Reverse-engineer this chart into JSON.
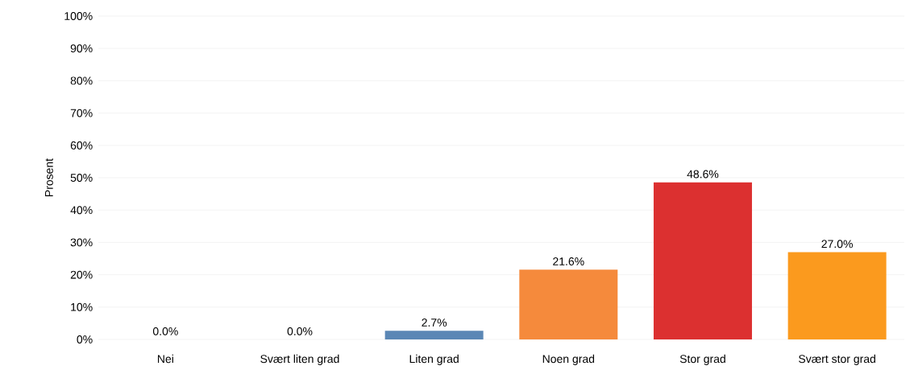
{
  "chart_data": {
    "type": "bar",
    "ylabel": "Prosent",
    "categories": [
      "Nei",
      "Svært liten grad",
      "Liten grad",
      "Noen grad",
      "Stor grad",
      "Svært stor grad"
    ],
    "values": [
      0.0,
      0.0,
      2.7,
      21.6,
      48.6,
      27.0
    ],
    "colors": [
      "#5b87b5",
      "#5b87b5",
      "#5b87b5",
      "#f58a3c",
      "#dc3030",
      "#fb9a1e"
    ],
    "value_labels": [
      "0.0%",
      "0.0%",
      "2.7%",
      "21.6%",
      "48.6%",
      "27.0%"
    ],
    "ylim": [
      0,
      100
    ],
    "yticks": [
      {
        "value": 0,
        "label": "0%"
      },
      {
        "value": 10,
        "label": "10%"
      },
      {
        "value": 20,
        "label": "20%"
      },
      {
        "value": 30,
        "label": "30%"
      },
      {
        "value": 40,
        "label": "40%"
      },
      {
        "value": 50,
        "label": "50%"
      },
      {
        "value": 60,
        "label": "60%"
      },
      {
        "value": 70,
        "label": "70%"
      },
      {
        "value": 80,
        "label": "80%"
      },
      {
        "value": 90,
        "label": "90%"
      },
      {
        "value": 100,
        "label": "100%"
      }
    ],
    "grid": "y"
  }
}
